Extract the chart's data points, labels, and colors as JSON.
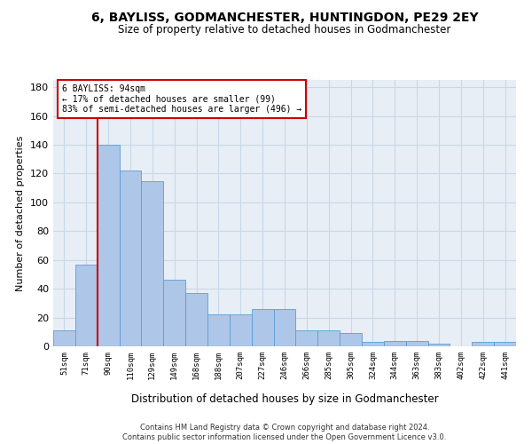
{
  "title": "6, BAYLISS, GODMANCHESTER, HUNTINGDON, PE29 2EY",
  "subtitle": "Size of property relative to detached houses in Godmanchester",
  "xlabel": "Distribution of detached houses by size in Godmanchester",
  "ylabel": "Number of detached properties",
  "categories": [
    "51sqm",
    "71sqm",
    "90sqm",
    "110sqm",
    "129sqm",
    "149sqm",
    "168sqm",
    "188sqm",
    "207sqm",
    "227sqm",
    "246sqm",
    "266sqm",
    "285sqm",
    "305sqm",
    "324sqm",
    "344sqm",
    "363sqm",
    "383sqm",
    "402sqm",
    "422sqm",
    "441sqm"
  ],
  "values": [
    11,
    57,
    140,
    122,
    115,
    46,
    37,
    22,
    22,
    26,
    26,
    11,
    11,
    9,
    3,
    4,
    4,
    2,
    0,
    3,
    3
  ],
  "bar_color": "#aec6e8",
  "bar_edge_color": "#5a9fd4",
  "grid_color": "#c8d8e8",
  "background_color": "#e8eef5",
  "vline_color": "#cc0000",
  "annotation_text": "6 BAYLISS: 94sqm\n← 17% of detached houses are smaller (99)\n83% of semi-detached houses are larger (496) →",
  "annotation_box_edgecolor": "#cc0000",
  "ylim": [
    0,
    185
  ],
  "yticks": [
    0,
    20,
    40,
    60,
    80,
    100,
    120,
    140,
    160,
    180
  ],
  "footer_line1": "Contains HM Land Registry data © Crown copyright and database right 2024.",
  "footer_line2": "Contains public sector information licensed under the Open Government Licence v3.0."
}
